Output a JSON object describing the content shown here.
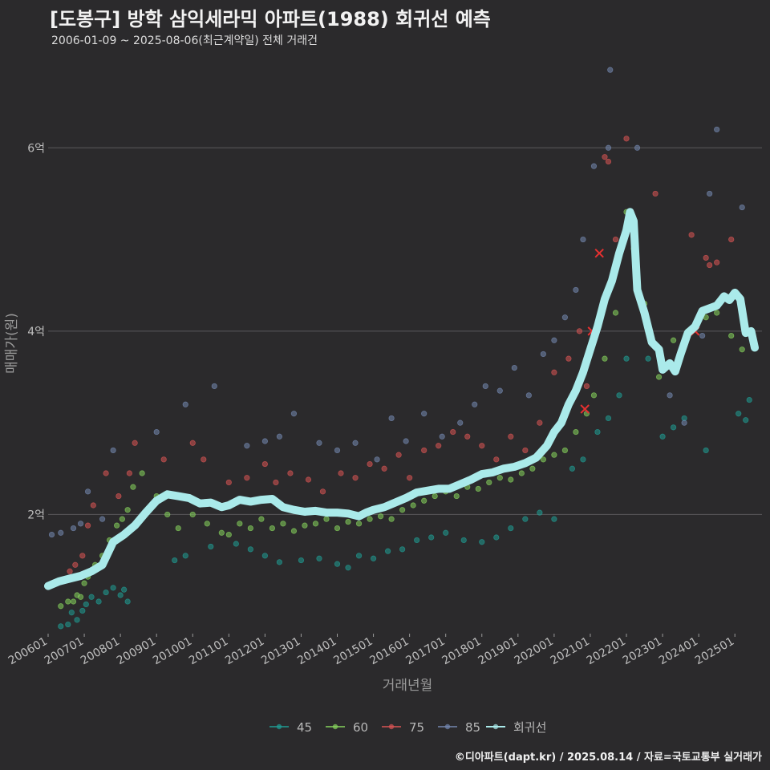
{
  "title": "[도봉구] 방학 삼익세라믹 아파트(1988) 회귀선 예측",
  "subtitle": "2006-01-09 ~ 2025-08-06(최근계약일) 전체 거래건",
  "credit": "©디아파트(dapt.kr) / 2025.08.14 / 자료=국토교통부 실거래가",
  "colors": {
    "background": "#2b2a2c",
    "grid": "#5a595b",
    "regression": "#aaeaea",
    "s45": "#1f9c94",
    "s60": "#86d35c",
    "s75": "#d95454",
    "s85": "#7488b0"
  },
  "chart_data": {
    "type": "scatter",
    "title": "[도봉구] 방학 삼익세라믹 아파트(1988) 회귀선 예측",
    "xlabel": "거래년월",
    "ylabel": "매매가(원)",
    "xlim": [
      2006.0,
      2025.75
    ],
    "ylim": [
      0.7,
      7.0
    ],
    "y_unit": "억",
    "x_ticks": [
      {
        "label": "200601",
        "value": 2006.0
      },
      {
        "label": "200701",
        "value": 2007.0
      },
      {
        "label": "200801",
        "value": 2008.0
      },
      {
        "label": "200901",
        "value": 2009.0
      },
      {
        "label": "201001",
        "value": 2010.0
      },
      {
        "label": "201101",
        "value": 2011.0
      },
      {
        "label": "201201",
        "value": 2012.0
      },
      {
        "label": "201301",
        "value": 2013.0
      },
      {
        "label": "201401",
        "value": 2014.0
      },
      {
        "label": "201501",
        "value": 2015.0
      },
      {
        "label": "201601",
        "value": 2016.0
      },
      {
        "label": "201701",
        "value": 2017.0
      },
      {
        "label": "201801",
        "value": 2018.0
      },
      {
        "label": "201901",
        "value": 2019.0
      },
      {
        "label": "202001",
        "value": 2020.0
      },
      {
        "label": "202101",
        "value": 2021.0
      },
      {
        "label": "202201",
        "value": 2022.0
      },
      {
        "label": "202301",
        "value": 2023.0
      },
      {
        "label": "202401",
        "value": 2024.0
      },
      {
        "label": "202501",
        "value": 2025.0
      }
    ],
    "y_ticks": [
      {
        "label": "2억",
        "value": 2
      },
      {
        "label": "4억",
        "value": 4
      },
      {
        "label": "6억",
        "value": 6
      }
    ],
    "legend": [
      {
        "key": "s45",
        "label": "45"
      },
      {
        "key": "s60",
        "label": "60"
      },
      {
        "key": "s75",
        "label": "75"
      },
      {
        "key": "s85",
        "label": "85"
      },
      {
        "key": "regression",
        "label": "회귀선"
      }
    ],
    "regression": [
      [
        2006.0,
        1.22
      ],
      [
        2006.3,
        1.27
      ],
      [
        2006.6,
        1.3
      ],
      [
        2006.9,
        1.33
      ],
      [
        2007.2,
        1.38
      ],
      [
        2007.5,
        1.45
      ],
      [
        2007.8,
        1.7
      ],
      [
        2008.1,
        1.78
      ],
      [
        2008.4,
        1.88
      ],
      [
        2008.7,
        2.02
      ],
      [
        2009.0,
        2.15
      ],
      [
        2009.3,
        2.22
      ],
      [
        2009.6,
        2.2
      ],
      [
        2009.9,
        2.18
      ],
      [
        2010.2,
        2.12
      ],
      [
        2010.5,
        2.13
      ],
      [
        2010.8,
        2.08
      ],
      [
        2011.0,
        2.1
      ],
      [
        2011.3,
        2.16
      ],
      [
        2011.6,
        2.14
      ],
      [
        2011.9,
        2.16
      ],
      [
        2012.2,
        2.17
      ],
      [
        2012.5,
        2.08
      ],
      [
        2012.8,
        2.05
      ],
      [
        2013.1,
        2.03
      ],
      [
        2013.4,
        2.04
      ],
      [
        2013.7,
        2.02
      ],
      [
        2014.0,
        2.02
      ],
      [
        2014.3,
        2.01
      ],
      [
        2014.6,
        1.98
      ],
      [
        2014.8,
        2.02
      ],
      [
        2015.0,
        2.05
      ],
      [
        2015.3,
        2.08
      ],
      [
        2015.6,
        2.13
      ],
      [
        2015.9,
        2.18
      ],
      [
        2016.2,
        2.24
      ],
      [
        2016.5,
        2.26
      ],
      [
        2016.8,
        2.28
      ],
      [
        2017.1,
        2.28
      ],
      [
        2017.4,
        2.33
      ],
      [
        2017.7,
        2.38
      ],
      [
        2018.0,
        2.44
      ],
      [
        2018.3,
        2.46
      ],
      [
        2018.6,
        2.5
      ],
      [
        2018.9,
        2.52
      ],
      [
        2019.2,
        2.56
      ],
      [
        2019.5,
        2.62
      ],
      [
        2019.8,
        2.75
      ],
      [
        2020.0,
        2.9
      ],
      [
        2020.2,
        3.0
      ],
      [
        2020.4,
        3.2
      ],
      [
        2020.6,
        3.35
      ],
      [
        2020.8,
        3.55
      ],
      [
        2021.0,
        3.8
      ],
      [
        2021.2,
        4.05
      ],
      [
        2021.4,
        4.35
      ],
      [
        2021.6,
        4.55
      ],
      [
        2021.8,
        4.85
      ],
      [
        2022.0,
        5.1
      ],
      [
        2022.1,
        5.3
      ],
      [
        2022.2,
        5.2
      ],
      [
        2022.3,
        4.45
      ],
      [
        2022.5,
        4.2
      ],
      [
        2022.7,
        3.88
      ],
      [
        2022.9,
        3.8
      ],
      [
        2023.0,
        3.58
      ],
      [
        2023.2,
        3.65
      ],
      [
        2023.35,
        3.56
      ],
      [
        2023.5,
        3.75
      ],
      [
        2023.7,
        3.98
      ],
      [
        2023.9,
        4.05
      ],
      [
        2024.1,
        4.22
      ],
      [
        2024.3,
        4.25
      ],
      [
        2024.5,
        4.28
      ],
      [
        2024.7,
        4.38
      ],
      [
        2024.85,
        4.34
      ],
      [
        2025.0,
        4.42
      ],
      [
        2025.15,
        4.35
      ],
      [
        2025.3,
        3.98
      ],
      [
        2025.45,
        4.0
      ],
      [
        2025.55,
        3.82
      ]
    ],
    "highlights": [
      {
        "x": 2020.85,
        "y": 3.15
      },
      {
        "x": 2021.05,
        "y": 4.0
      },
      {
        "x": 2021.25,
        "y": 4.85
      },
      {
        "x": 2023.9,
        "y": 4.0
      }
    ],
    "series": [
      {
        "name": "45",
        "key": "s45",
        "points": [
          [
            2006.35,
            0.78
          ],
          [
            2006.55,
            0.8
          ],
          [
            2006.65,
            0.93
          ],
          [
            2006.8,
            0.85
          ],
          [
            2006.95,
            0.95
          ],
          [
            2007.05,
            1.02
          ],
          [
            2007.2,
            1.1
          ],
          [
            2007.4,
            1.05
          ],
          [
            2007.6,
            1.15
          ],
          [
            2007.8,
            1.2
          ],
          [
            2008.0,
            1.12
          ],
          [
            2008.1,
            1.18
          ],
          [
            2008.2,
            1.05
          ],
          [
            2009.5,
            1.5
          ],
          [
            2009.8,
            1.55
          ],
          [
            2010.5,
            1.65
          ],
          [
            2011.2,
            1.68
          ],
          [
            2011.6,
            1.62
          ],
          [
            2012.0,
            1.55
          ],
          [
            2012.4,
            1.48
          ],
          [
            2013.0,
            1.5
          ],
          [
            2013.5,
            1.52
          ],
          [
            2014.0,
            1.46
          ],
          [
            2014.3,
            1.42
          ],
          [
            2014.6,
            1.55
          ],
          [
            2015.0,
            1.52
          ],
          [
            2015.4,
            1.6
          ],
          [
            2015.8,
            1.62
          ],
          [
            2016.2,
            1.72
          ],
          [
            2016.6,
            1.75
          ],
          [
            2017.0,
            1.8
          ],
          [
            2017.5,
            1.72
          ],
          [
            2018.0,
            1.7
          ],
          [
            2018.4,
            1.75
          ],
          [
            2018.8,
            1.85
          ],
          [
            2019.2,
            1.95
          ],
          [
            2019.6,
            2.02
          ],
          [
            2020.0,
            1.95
          ],
          [
            2020.5,
            2.5
          ],
          [
            2020.8,
            2.6
          ],
          [
            2021.2,
            2.9
          ],
          [
            2021.5,
            3.05
          ],
          [
            2021.8,
            3.3
          ],
          [
            2022.0,
            3.7
          ],
          [
            2022.6,
            3.7
          ],
          [
            2023.0,
            2.85
          ],
          [
            2023.3,
            2.95
          ],
          [
            2023.6,
            3.05
          ],
          [
            2024.2,
            2.7
          ],
          [
            2025.1,
            3.1
          ],
          [
            2025.4,
            3.25
          ],
          [
            2025.3,
            3.03
          ]
        ]
      },
      {
        "name": "60",
        "key": "s60",
        "points": [
          [
            2006.35,
            1.0
          ],
          [
            2006.55,
            1.05
          ],
          [
            2006.7,
            1.05
          ],
          [
            2006.8,
            1.12
          ],
          [
            2006.9,
            1.1
          ],
          [
            2007.0,
            1.25
          ],
          [
            2007.1,
            1.32
          ],
          [
            2007.3,
            1.45
          ],
          [
            2007.5,
            1.55
          ],
          [
            2007.7,
            1.72
          ],
          [
            2007.9,
            1.88
          ],
          [
            2008.05,
            1.95
          ],
          [
            2008.2,
            2.05
          ],
          [
            2008.35,
            2.3
          ],
          [
            2008.6,
            2.45
          ],
          [
            2009.0,
            2.2
          ],
          [
            2009.3,
            2.0
          ],
          [
            2009.6,
            1.85
          ],
          [
            2010.0,
            2.0
          ],
          [
            2010.4,
            1.9
          ],
          [
            2010.8,
            1.8
          ],
          [
            2011.0,
            1.78
          ],
          [
            2011.3,
            1.9
          ],
          [
            2011.6,
            1.85
          ],
          [
            2011.9,
            1.95
          ],
          [
            2012.2,
            1.85
          ],
          [
            2012.5,
            1.9
          ],
          [
            2012.8,
            1.82
          ],
          [
            2013.1,
            1.88
          ],
          [
            2013.4,
            1.9
          ],
          [
            2013.7,
            1.95
          ],
          [
            2014.0,
            1.85
          ],
          [
            2014.3,
            1.92
          ],
          [
            2014.6,
            1.9
          ],
          [
            2014.9,
            1.95
          ],
          [
            2015.2,
            1.98
          ],
          [
            2015.5,
            1.95
          ],
          [
            2015.8,
            2.05
          ],
          [
            2016.1,
            2.1
          ],
          [
            2016.4,
            2.15
          ],
          [
            2016.7,
            2.2
          ],
          [
            2017.0,
            2.25
          ],
          [
            2017.3,
            2.2
          ],
          [
            2017.6,
            2.3
          ],
          [
            2017.9,
            2.28
          ],
          [
            2018.2,
            2.35
          ],
          [
            2018.5,
            2.4
          ],
          [
            2018.8,
            2.38
          ],
          [
            2019.1,
            2.45
          ],
          [
            2019.4,
            2.5
          ],
          [
            2019.7,
            2.6
          ],
          [
            2020.0,
            2.65
          ],
          [
            2020.3,
            2.7
          ],
          [
            2020.6,
            2.9
          ],
          [
            2020.9,
            3.1
          ],
          [
            2021.1,
            3.3
          ],
          [
            2021.4,
            3.7
          ],
          [
            2021.7,
            4.2
          ],
          [
            2022.0,
            5.3
          ],
          [
            2022.2,
            4.9
          ],
          [
            2022.5,
            4.3
          ],
          [
            2022.9,
            3.5
          ],
          [
            2023.3,
            3.9
          ],
          [
            2023.7,
            4.0
          ],
          [
            2024.2,
            4.15
          ],
          [
            2024.5,
            4.2
          ],
          [
            2024.9,
            3.95
          ],
          [
            2025.2,
            3.8
          ]
        ]
      },
      {
        "name": "75",
        "key": "s75",
        "points": [
          [
            2006.6,
            1.38
          ],
          [
            2006.75,
            1.45
          ],
          [
            2006.95,
            1.55
          ],
          [
            2007.1,
            1.88
          ],
          [
            2007.25,
            2.1
          ],
          [
            2007.6,
            2.45
          ],
          [
            2007.95,
            2.2
          ],
          [
            2008.25,
            2.45
          ],
          [
            2008.4,
            2.78
          ],
          [
            2009.2,
            2.6
          ],
          [
            2010.0,
            2.78
          ],
          [
            2010.3,
            2.6
          ],
          [
            2011.0,
            2.35
          ],
          [
            2011.5,
            2.4
          ],
          [
            2012.0,
            2.55
          ],
          [
            2012.3,
            2.35
          ],
          [
            2012.7,
            2.45
          ],
          [
            2013.2,
            2.38
          ],
          [
            2013.6,
            2.25
          ],
          [
            2014.1,
            2.45
          ],
          [
            2014.5,
            2.4
          ],
          [
            2014.9,
            2.55
          ],
          [
            2015.3,
            2.5
          ],
          [
            2015.7,
            2.65
          ],
          [
            2016.0,
            2.4
          ],
          [
            2016.4,
            2.7
          ],
          [
            2016.8,
            2.75
          ],
          [
            2017.2,
            2.9
          ],
          [
            2017.6,
            2.85
          ],
          [
            2018.0,
            2.75
          ],
          [
            2018.4,
            2.6
          ],
          [
            2018.8,
            2.85
          ],
          [
            2019.2,
            2.7
          ],
          [
            2019.6,
            3.0
          ],
          [
            2020.0,
            3.55
          ],
          [
            2020.4,
            3.7
          ],
          [
            2020.7,
            4.0
          ],
          [
            2020.9,
            3.4
          ],
          [
            2021.4,
            5.9
          ],
          [
            2021.5,
            5.85
          ],
          [
            2021.7,
            5.0
          ],
          [
            2022.0,
            6.1
          ],
          [
            2022.2,
            5.0
          ],
          [
            2022.8,
            5.5
          ],
          [
            2023.8,
            5.05
          ],
          [
            2024.2,
            4.8
          ],
          [
            2024.5,
            4.75
          ],
          [
            2024.9,
            5.0
          ],
          [
            2024.3,
            4.72
          ]
        ]
      },
      {
        "name": "85",
        "key": "s85",
        "points": [
          [
            2006.1,
            1.78
          ],
          [
            2006.35,
            1.8
          ],
          [
            2006.7,
            1.85
          ],
          [
            2006.9,
            1.9
          ],
          [
            2007.1,
            2.25
          ],
          [
            2007.5,
            1.95
          ],
          [
            2007.8,
            2.7
          ],
          [
            2009.0,
            2.9
          ],
          [
            2009.8,
            3.2
          ],
          [
            2010.6,
            3.4
          ],
          [
            2011.5,
            2.75
          ],
          [
            2012.0,
            2.8
          ],
          [
            2012.4,
            2.85
          ],
          [
            2012.8,
            3.1
          ],
          [
            2013.5,
            2.78
          ],
          [
            2014.0,
            2.7
          ],
          [
            2014.5,
            2.78
          ],
          [
            2015.1,
            2.6
          ],
          [
            2015.5,
            3.05
          ],
          [
            2015.9,
            2.8
          ],
          [
            2016.4,
            3.1
          ],
          [
            2016.9,
            2.85
          ],
          [
            2017.4,
            3.0
          ],
          [
            2017.8,
            3.2
          ],
          [
            2018.1,
            3.4
          ],
          [
            2018.5,
            3.35
          ],
          [
            2018.9,
            3.6
          ],
          [
            2019.3,
            3.3
          ],
          [
            2019.7,
            3.75
          ],
          [
            2020.0,
            3.9
          ],
          [
            2020.3,
            4.15
          ],
          [
            2020.6,
            4.45
          ],
          [
            2020.8,
            5.0
          ],
          [
            2021.1,
            5.8
          ],
          [
            2021.5,
            6.0
          ],
          [
            2021.55,
            6.85
          ],
          [
            2022.3,
            6.0
          ],
          [
            2023.2,
            3.3
          ],
          [
            2023.6,
            3.0
          ],
          [
            2024.3,
            5.5
          ],
          [
            2024.5,
            6.2
          ],
          [
            2025.2,
            5.35
          ],
          [
            2024.1,
            3.95
          ]
        ]
      }
    ]
  }
}
